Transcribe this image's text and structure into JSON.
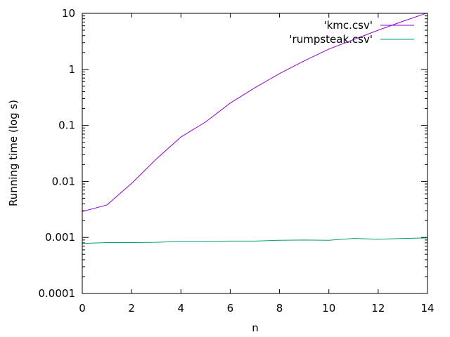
{
  "chart_data": {
    "type": "line",
    "title": "",
    "xlabel": "n",
    "ylabel": "Running time (log s)",
    "xlim": [
      0,
      14
    ],
    "ylim": [
      0.0001,
      10
    ],
    "yscale": "log",
    "grid": false,
    "legend_position": "top-right",
    "x_ticks": [
      0,
      2,
      4,
      6,
      8,
      10,
      12,
      14
    ],
    "x_tick_labels": [
      "0",
      "2",
      "4",
      "6",
      "8",
      "10",
      "12",
      "14"
    ],
    "y_ticks": [
      0.0001,
      0.001,
      0.01,
      0.1,
      1,
      10
    ],
    "y_tick_labels": [
      "0.0001",
      "0.001",
      "0.01",
      "0.1",
      "1",
      "10"
    ],
    "x": [
      0,
      1,
      2,
      3,
      4,
      5,
      6,
      7,
      8,
      9,
      10,
      11,
      12,
      13,
      14
    ],
    "series": [
      {
        "name": "'kmc.csv'",
        "color": "#9400d3",
        "values": [
          0.0029,
          0.0038,
          0.0092,
          0.025,
          0.062,
          0.115,
          0.25,
          0.47,
          0.84,
          1.42,
          2.3,
          3.4,
          5.0,
          7.2,
          10.2
        ]
      },
      {
        "name": "'rumpsteak.csv'",
        "color": "#009e73",
        "values": [
          0.00078,
          0.00081,
          0.00081,
          0.00082,
          0.00085,
          0.00085,
          0.00086,
          0.00086,
          0.00089,
          0.0009,
          0.00089,
          0.00096,
          0.00093,
          0.00096,
          0.00098
        ]
      }
    ]
  }
}
